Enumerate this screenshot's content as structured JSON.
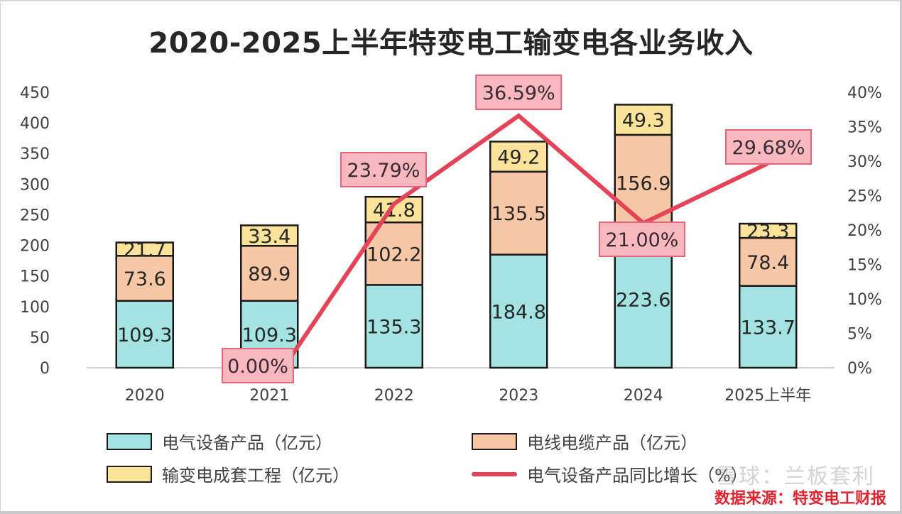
{
  "title": "2020-2025上半年特变电工输变电各业务收入",
  "colors": {
    "equipment": "#a3e4e2",
    "cable": "#f8c8a6",
    "project": "#fbe39a",
    "growth_line": "#e44458",
    "growth_label_bg": "#f7b8c0",
    "growth_label_border": "#e06878",
    "bar_outline": "#1a1a1a",
    "source_text": "#e0242f"
  },
  "chart_data": {
    "type": "bar",
    "subtype": "stacked-bar-with-line",
    "title": "2020-2025上半年特变电工输变电各业务收入",
    "categories": [
      "2020",
      "2021",
      "2022",
      "2023",
      "2024",
      "2025上半年"
    ],
    "series": [
      {
        "name": "电气设备产品（亿元）",
        "key": "equipment",
        "axis": "left",
        "kind": "bar",
        "values": [
          109.3,
          109.3,
          135.3,
          184.8,
          223.6,
          133.7
        ]
      },
      {
        "name": "电线电缆产品（亿元）",
        "key": "cable",
        "axis": "left",
        "kind": "bar",
        "values": [
          73.6,
          89.9,
          102.2,
          135.5,
          156.9,
          78.4
        ]
      },
      {
        "name": "输变电成套工程（亿元）",
        "key": "project",
        "axis": "left",
        "kind": "bar",
        "values": [
          21.7,
          33.4,
          41.8,
          49.2,
          49.3,
          23.3
        ]
      },
      {
        "name": "电气设备产品同比增长（%）",
        "key": "growth",
        "axis": "right",
        "kind": "line",
        "x_start_index": 1,
        "values": [
          null,
          0.0,
          23.79,
          36.59,
          21.0,
          29.68
        ],
        "labels": [
          null,
          "0.00%",
          "23.79%",
          "36.59%",
          "21.00%",
          "29.68%"
        ]
      }
    ],
    "left_axis": {
      "ylim": [
        0,
        450
      ],
      "ticks": [
        "0",
        "50",
        "100",
        "150",
        "200",
        "250",
        "300",
        "350",
        "400",
        "450"
      ]
    },
    "right_axis": {
      "ylim": [
        0,
        40
      ],
      "ticks": [
        "0%",
        "5%",
        "10%",
        "15%",
        "20%",
        "25%",
        "30%",
        "35%",
        "40%"
      ]
    },
    "xlabel": "",
    "ylabel": "",
    "grid": false,
    "legend_placement": "bottom"
  },
  "legend": [
    {
      "label": "电气设备产品（亿元）",
      "type": "box",
      "color_key": "equipment"
    },
    {
      "label": "电线电缆产品（亿元）",
      "type": "box",
      "color_key": "cable"
    },
    {
      "label": "输变电成套工程（亿元）",
      "type": "box",
      "color_key": "project"
    },
    {
      "label": "电气设备产品同比增长（%）",
      "type": "line",
      "color_key": "growth_line"
    }
  ],
  "source": "数据来源：特变电工财报",
  "watermark": "雪球：兰板套利"
}
